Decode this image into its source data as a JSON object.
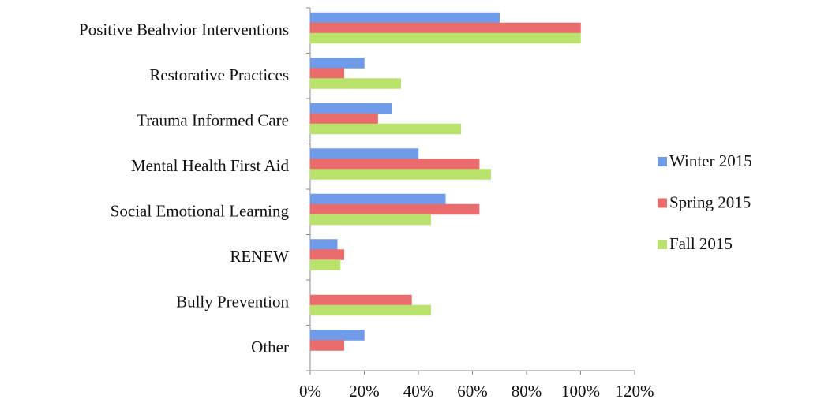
{
  "chart_data": {
    "type": "hbar",
    "categories": [
      "Positive Beahvior Interventions",
      "Restorative Practices",
      "Trauma Informed Care",
      "Mental Health First Aid",
      "Social Emotional Learning",
      "RENEW",
      "Bully Prevention",
      "Other"
    ],
    "series": [
      {
        "name": "Winter 2015",
        "color": "#6f9be8",
        "values": [
          70,
          20,
          30,
          40,
          50,
          10,
          null,
          20
        ]
      },
      {
        "name": "Spring 2015",
        "color": "#ea6b6b",
        "values": [
          100,
          12.5,
          25,
          62.5,
          62.5,
          12.5,
          37.5,
          12.5
        ]
      },
      {
        "name": "Fall 2015",
        "color": "#b8e26c",
        "values": [
          100,
          33.5,
          55.7,
          66.8,
          44.6,
          11.1,
          44.6,
          null
        ]
      }
    ],
    "xlim": [
      0,
      120
    ],
    "xticks": [
      {
        "value": 0,
        "label": "0%"
      },
      {
        "value": 20,
        "label": "20%"
      },
      {
        "value": 40,
        "label": "40%"
      },
      {
        "value": 60,
        "label": "60%"
      },
      {
        "value": 80,
        "label": "80%"
      },
      {
        "value": 100,
        "label": "100%"
      },
      {
        "value": 120,
        "label": "120%"
      }
    ],
    "legend": "right"
  }
}
